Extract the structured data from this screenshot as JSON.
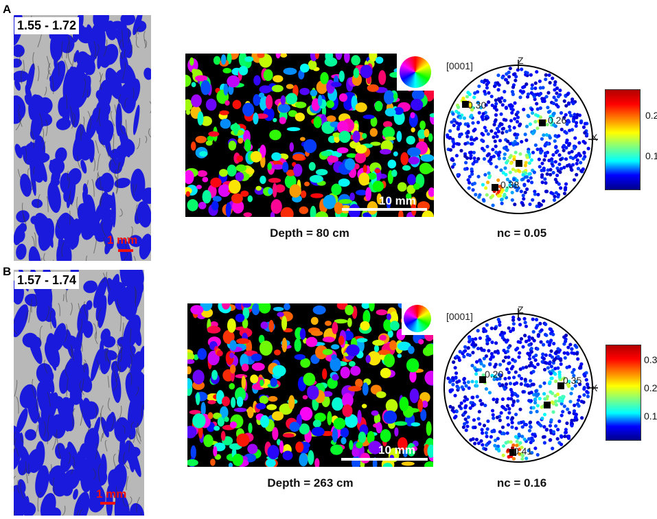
{
  "panels": [
    {
      "letter": "A",
      "range_label": "1.55 - 1.72",
      "micro_scale": "1 mm",
      "ebsd_scale": "10 mm",
      "depth_caption": "Depth = 80 cm",
      "nc_caption": "nc = 0.05",
      "plane_label": "[0001]",
      "axis_z": "Z",
      "axis_x": "X",
      "pole_values": [
        "0.30",
        "0.26",
        "0.38"
      ],
      "cbar_ticks": [
        "0.2",
        "0.1"
      ]
    },
    {
      "letter": "B",
      "range_label": "1.57 - 1.74",
      "micro_scale": "1 mm",
      "ebsd_scale": "10 mm",
      "depth_caption": "Depth = 263 cm",
      "nc_caption": "nc = 0.16",
      "plane_label": "[0001]",
      "axis_z": "Z",
      "axis_x": "X",
      "pole_values": [
        "0.20",
        "0.35",
        "0.41"
      ],
      "cbar_ticks": [
        "0.3",
        "0.2",
        "0.1"
      ]
    }
  ],
  "colors": {
    "pore": "#1a1adc",
    "ice": "#b8b8b8",
    "scale_red": "#e11111"
  },
  "colormap": "jet"
}
